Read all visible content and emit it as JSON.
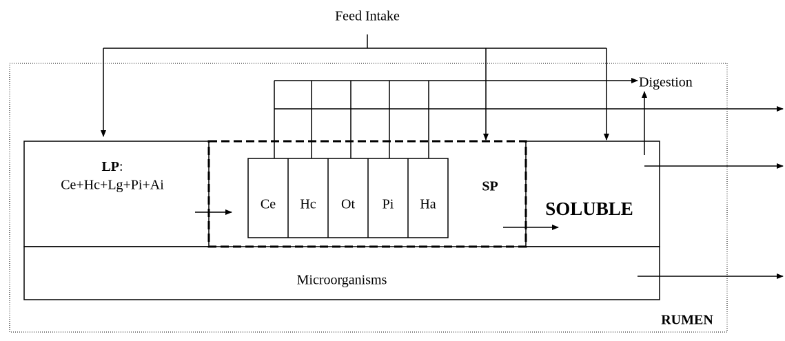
{
  "title": "Feed Intake",
  "digestion": "Digestion",
  "lp": {
    "label": "LP",
    "colon": ":",
    "formula": "Ce+Hc+Lg+Pi+Ai"
  },
  "components": [
    "Ce",
    "Hc",
    "Ot",
    "Pi",
    "Ha"
  ],
  "sp": "SP",
  "soluble": "SOLUBLE",
  "microorganisms": "Microorganisms",
  "rumen": "RUMEN"
}
